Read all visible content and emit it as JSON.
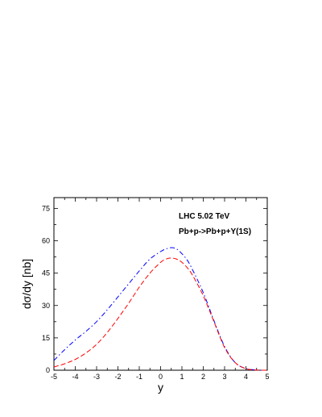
{
  "chart_data": {
    "type": "line",
    "xlabel": "y",
    "ylabel": "dσ/dy [nb]",
    "xlim": [
      -5,
      5
    ],
    "ylim": [
      0,
      80
    ],
    "xticks": [
      -5,
      -4,
      -3,
      -2,
      -1,
      0,
      1,
      2,
      3,
      4,
      5
    ],
    "yticks": [
      0,
      15,
      30,
      45,
      60,
      75
    ],
    "grid": false,
    "annotations": [
      "LHC 5.02 TeV",
      "Pb+p->Pb+p+Υ(1S)"
    ],
    "series": [
      {
        "style": "dash-dot",
        "color": "#0000ff",
        "x": [
          -5,
          -4.5,
          -4,
          -3.5,
          -3,
          -2.5,
          -2,
          -1.5,
          -1,
          -0.5,
          0,
          0.25,
          0.5,
          0.75,
          1,
          1.25,
          1.5,
          2,
          2.5,
          3,
          3.5,
          4,
          4.5,
          5
        ],
        "y": [
          4.5,
          9.5,
          14,
          18,
          22.5,
          28,
          34,
          40,
          46,
          51.5,
          55,
          56.2,
          56.8,
          56.2,
          54,
          51,
          46.5,
          36,
          23,
          11,
          3.5,
          0.8,
          0.1,
          0
        ]
      },
      {
        "style": "dashed",
        "color": "#ff0000",
        "x": [
          -5,
          -4.5,
          -4,
          -3.5,
          -3,
          -2.5,
          -2,
          -1.5,
          -1,
          -0.5,
          0,
          0.25,
          0.5,
          0.75,
          1,
          1.25,
          1.5,
          2,
          2.5,
          3,
          3.5,
          4,
          4.5,
          5
        ],
        "y": [
          1.5,
          3,
          5,
          8,
          12,
          17.5,
          24,
          31,
          38.5,
          45,
          50,
          51.5,
          52,
          51.5,
          50,
          47.5,
          44,
          34.5,
          22.5,
          10.5,
          3.5,
          0.7,
          0.1,
          0
        ]
      }
    ]
  }
}
